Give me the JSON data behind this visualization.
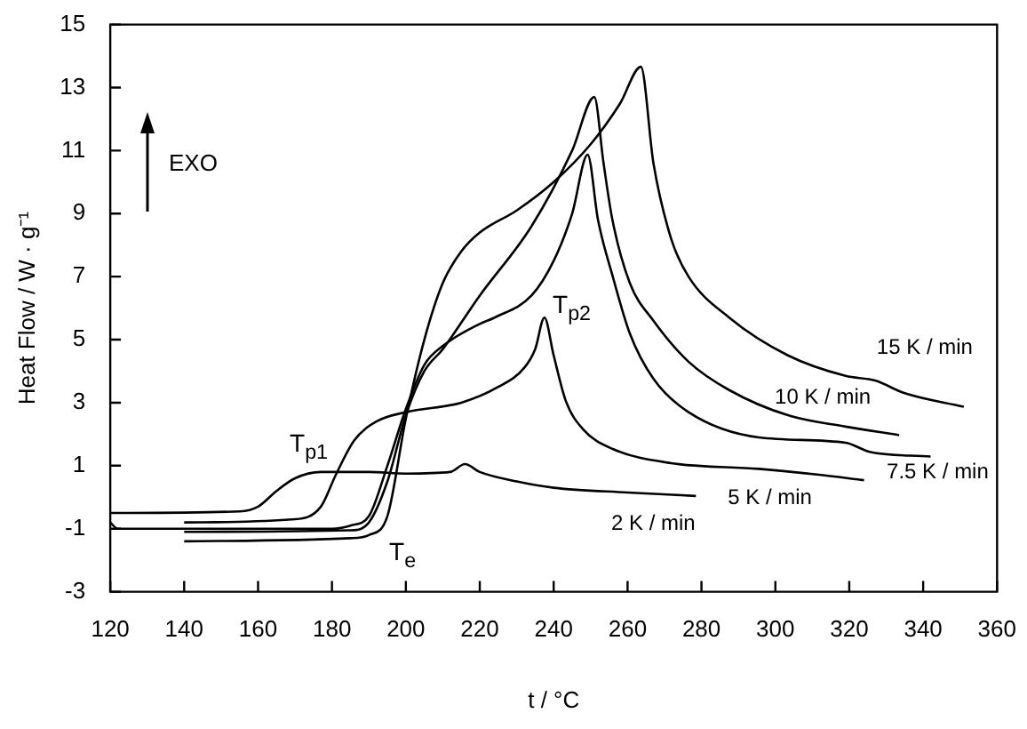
{
  "chart_data": {
    "type": "line",
    "xlabel": "t / °C",
    "ylabel": "Heat Flow / W · g⁻¹",
    "xlim": [
      120,
      360
    ],
    "xticks": [
      120,
      140,
      160,
      180,
      200,
      220,
      240,
      260,
      280,
      300,
      320,
      340,
      360
    ],
    "ylim": [
      -3,
      15
    ],
    "yticks": [
      -3,
      -1,
      1,
      3,
      5,
      7,
      9,
      11,
      13,
      15
    ],
    "grid": false,
    "marker": "none",
    "line_style": "solid",
    "series": [
      {
        "name": "2 K / min",
        "color": "#000000",
        "x": [
          120,
          155,
          160,
          165,
          170,
          177,
          190,
          200,
          212,
          216,
          220,
          230,
          240,
          260,
          278.5
        ],
        "values": [
          -0.5,
          -0.45,
          -0.3,
          0.2,
          0.6,
          0.8,
          0.8,
          0.75,
          0.8,
          1.05,
          0.8,
          0.5,
          0.3,
          0.15,
          0.04
        ]
      },
      {
        "name": "5 K / min",
        "color": "#000000",
        "x": [
          140,
          170,
          177,
          181,
          186,
          192,
          200,
          215,
          225,
          232,
          235,
          237.5,
          240,
          243.3,
          248,
          256,
          271.8,
          295.5,
          311.3,
          324
        ],
        "values": [
          -0.8,
          -0.7,
          -0.3,
          0.7,
          1.8,
          2.4,
          2.7,
          3.0,
          3.5,
          4.1,
          4.7,
          5.7,
          4.5,
          3.05,
          2.15,
          1.53,
          1.08,
          0.9,
          0.72,
          0.54
        ]
      },
      {
        "name": "7.5 K / min",
        "color": "#000000",
        "x": [
          120,
          122,
          140,
          180,
          185,
          190,
          195,
          200,
          205,
          210,
          220,
          224,
          234,
          240,
          245,
          249.2,
          252,
          256,
          260.6,
          267,
          276.5,
          295.5,
          319,
          325.5,
          342
        ],
        "values": [
          -0.8,
          -1.0,
          -1.0,
          -1.0,
          -0.9,
          -0.6,
          1.0,
          2.8,
          4.2,
          4.8,
          5.5,
          5.7,
          6.4,
          7.5,
          9.0,
          10.87,
          8.8,
          7.0,
          5.2,
          3.76,
          2.7,
          1.9,
          1.73,
          1.44,
          1.29
        ]
      },
      {
        "name": "10 K / min",
        "color": "#000000",
        "x": [
          140,
          185,
          190,
          195,
          200,
          205,
          210,
          220,
          234,
          245,
          251,
          253.5,
          255.9,
          260.6,
          267,
          276.5,
          287.5,
          303.4,
          319,
          333.5
        ],
        "values": [
          -1.1,
          -1.05,
          -0.8,
          0.5,
          2.6,
          4.0,
          4.7,
          6.4,
          8.6,
          11.0,
          12.7,
          10.6,
          8.8,
          6.8,
          5.6,
          4.3,
          3.4,
          2.6,
          2.24,
          1.97
        ]
      },
      {
        "name": "15 K / min",
        "color": "#000000",
        "x": [
          140,
          185,
          190,
          195,
          200,
          205,
          210,
          215,
          220,
          230,
          240,
          250,
          258,
          263.6,
          267,
          271.8,
          276.5,
          287.5,
          303.4,
          319,
          327,
          335,
          351
        ],
        "values": [
          -1.4,
          -1.3,
          -1.2,
          -0.6,
          2.5,
          5.0,
          6.8,
          7.8,
          8.4,
          9.1,
          10.0,
          11.2,
          12.5,
          13.66,
          10.6,
          8.2,
          7.0,
          5.7,
          4.5,
          3.85,
          3.7,
          3.3,
          2.87
        ]
      }
    ],
    "annotations": [
      "EXO",
      "T$_{p1}$",
      "T$_{p2}$",
      "T$_{e}$"
    ]
  }
}
